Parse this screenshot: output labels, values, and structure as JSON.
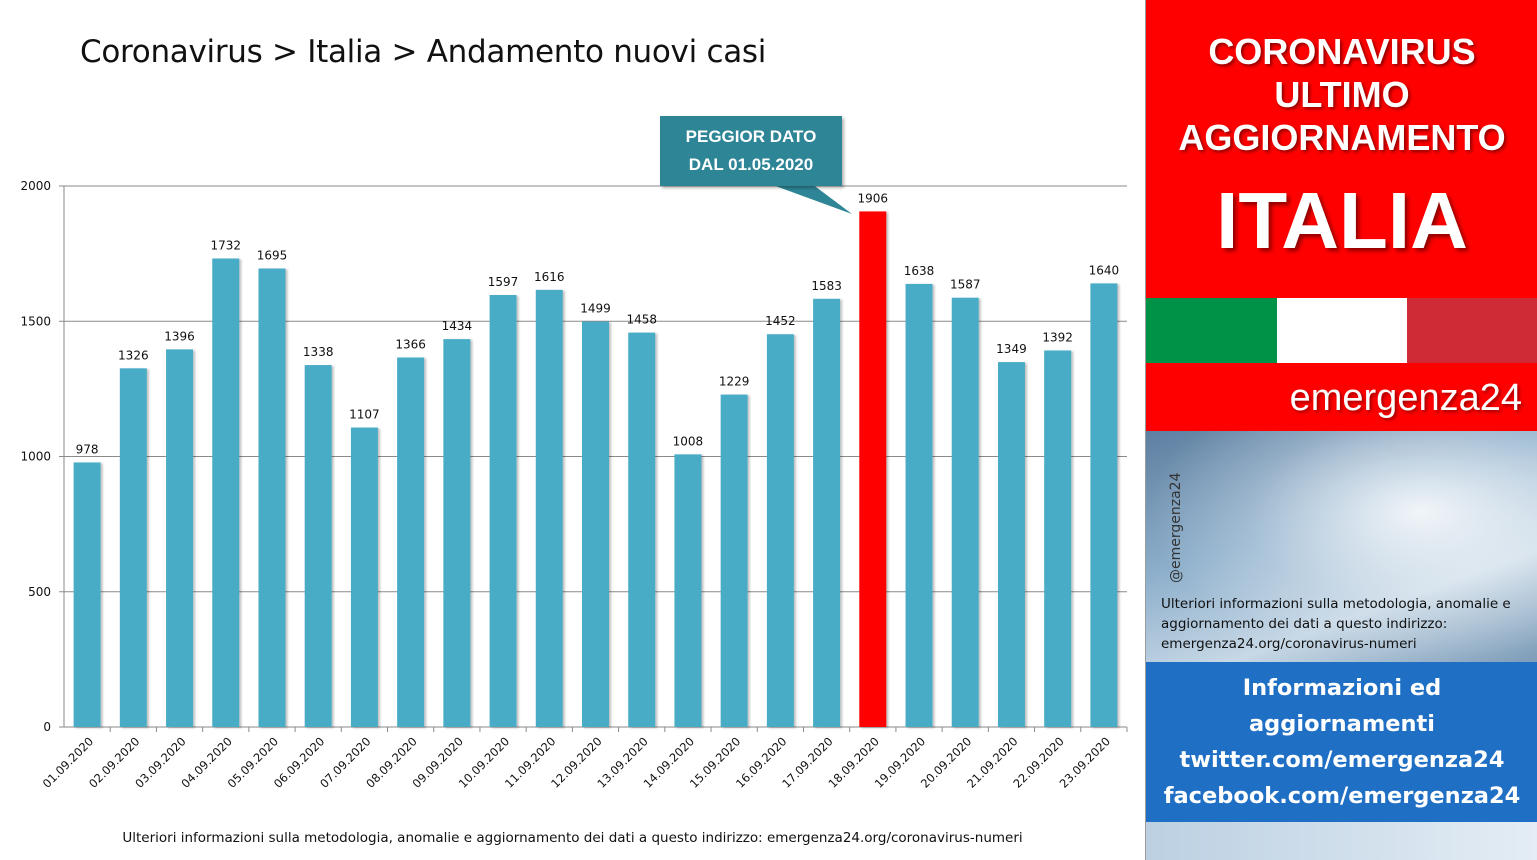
{
  "title": "Coronavirus > Italia > Andamento nuovi casi",
  "callout": {
    "line1": "PEGGIOR DATO",
    "line2": "DAL 01.05.2020"
  },
  "bottom_note": "Ulteriori informazioni sulla metodologia, anomalie e aggiornamento dei dati a questo indirizzo: emergenza24.org/coronavirus-numeri",
  "colors": {
    "bar": "#4aacc6",
    "highlight": "#ff0000",
    "brand_red": "#ff0000",
    "info_blue": "#1f6fc4",
    "callout": "#2e8596"
  },
  "chart_data": {
    "type": "bar",
    "categories": [
      "01.09.2020",
      "02.09.2020",
      "03.09.2020",
      "04.09.2020",
      "05.09.2020",
      "06.09.2020",
      "07.09.2020",
      "08.09.2020",
      "09.09.2020",
      "10.09.2020",
      "11.09.2020",
      "12.09.2020",
      "13.09.2020",
      "14.09.2020",
      "15.09.2020",
      "16.09.2020",
      "17.09.2020",
      "18.09.2020",
      "19.09.2020",
      "20.09.2020",
      "21.09.2020",
      "22.09.2020",
      "23.09.2020"
    ],
    "values": [
      978,
      1326,
      1396,
      1732,
      1695,
      1338,
      1107,
      1366,
      1434,
      1597,
      1616,
      1499,
      1458,
      1008,
      1229,
      1452,
      1583,
      1906,
      1638,
      1587,
      1349,
      1392,
      1640
    ],
    "highlight_category": "18.09.2020",
    "yticks": [
      0,
      500,
      1000,
      1500,
      2000
    ],
    "ylim": [
      0,
      2000
    ],
    "grid": true,
    "legend": "none",
    "data_labels": true
  },
  "sidebar": {
    "headline": [
      "CORONAVIRUS",
      "ULTIMO",
      "AGGIORNAMENTO"
    ],
    "country": "ITALIA",
    "flag_colors": [
      "#009246",
      "#ffffff",
      "#ce2b37"
    ],
    "brand": "emergenza24",
    "handle": "@emergenza24",
    "note": "Ulteriori informazioni sulla metodologia, anomalie e aggiornamento dei dati a questo indirizzo: emergenza24.org/coronavirus-numeri",
    "info_lines": [
      "Informazioni ed",
      "aggiornamenti",
      "twitter.com/emergenza24",
      "facebook.com/emergenza24"
    ]
  }
}
